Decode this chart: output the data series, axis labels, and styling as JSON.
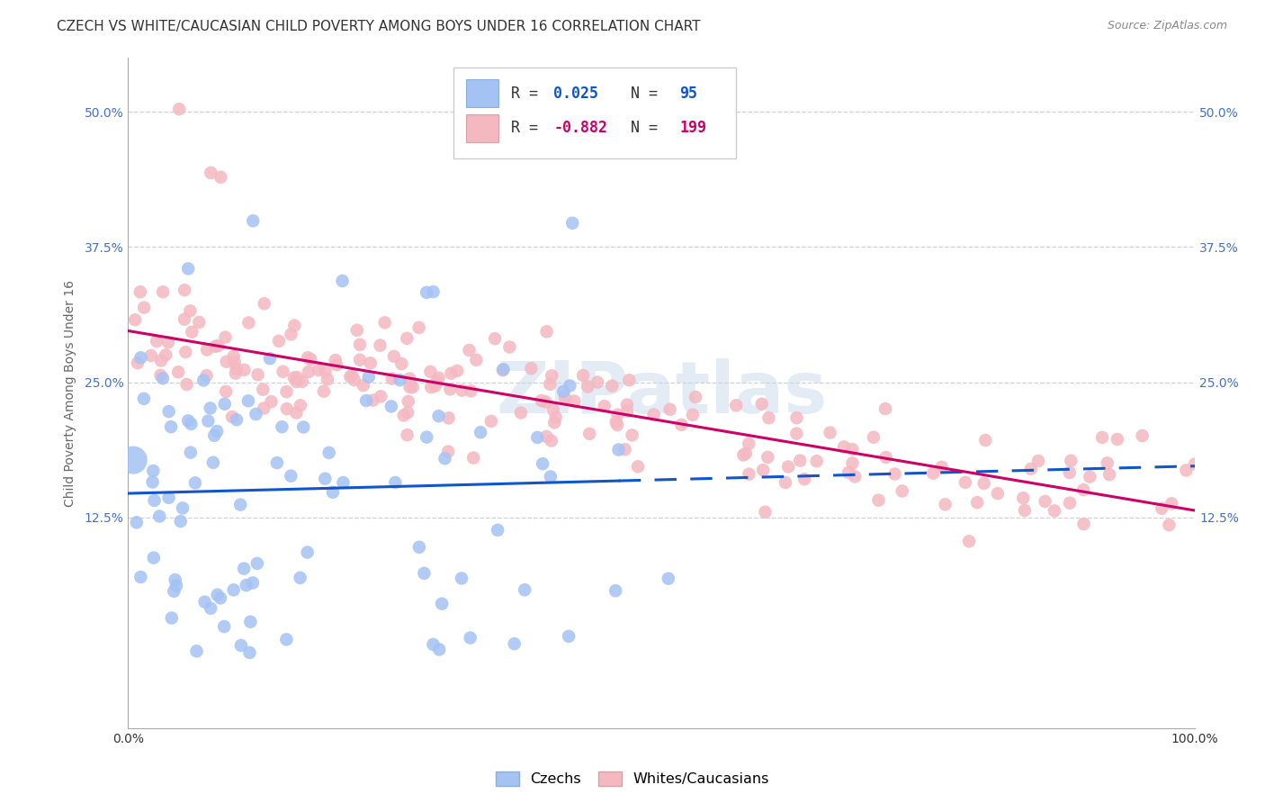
{
  "title": "CZECH VS WHITE/CAUCASIAN CHILD POVERTY AMONG BOYS UNDER 16 CORRELATION CHART",
  "source": "Source: ZipAtlas.com",
  "ylabel": "Child Poverty Among Boys Under 16",
  "ytick_labels": [
    "12.5%",
    "25.0%",
    "37.5%",
    "50.0%"
  ],
  "ytick_values": [
    0.125,
    0.25,
    0.375,
    0.5
  ],
  "xlim": [
    0.0,
    1.0
  ],
  "ylim": [
    -0.07,
    0.55
  ],
  "czech_R": 0.025,
  "czech_N": 95,
  "white_R": -0.882,
  "white_N": 199,
  "czech_color": "#a4c2f4",
  "white_color": "#f4b8c1",
  "czech_line_color": "#1155cc",
  "white_line_color": "#cc0066",
  "tick_color": "#4472c4",
  "watermark_text": "ZIPatlas",
  "background_color": "#ffffff",
  "grid_color": "#cccccc",
  "title_fontsize": 11,
  "axis_label_fontsize": 10,
  "tick_fontsize": 10,
  "legend_fontsize": 12
}
